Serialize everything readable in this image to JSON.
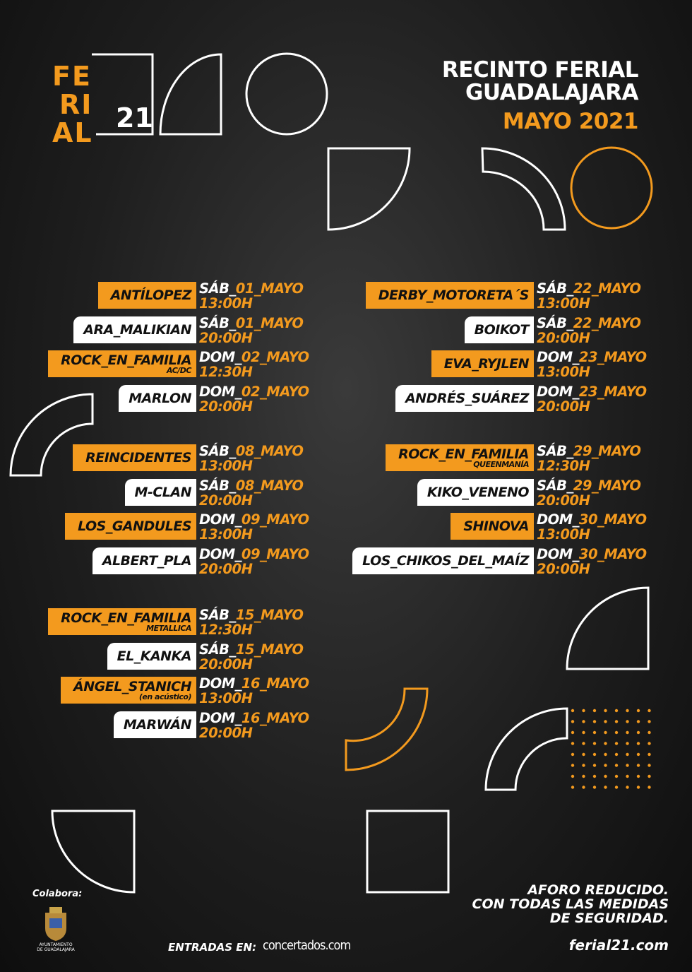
{
  "header": {
    "logo": [
      "FE",
      "RI",
      "AL"
    ],
    "logo_year": "21",
    "venue": [
      "RECINTO FERIAL",
      "GUADALAJARA"
    ],
    "month": "MAYO 2021"
  },
  "schedule": {
    "left": [
      [
        {
          "artist": "ANTÍLOPEZ",
          "day": "SÁB_",
          "date": "01_MAYO",
          "time": "13:00H",
          "highlight": true
        },
        {
          "artist": "ARA_MALIKIAN",
          "day": "SÁB_",
          "date": "01_MAYO",
          "time": "20:00H",
          "highlight": false
        },
        {
          "artist": "ROCK_EN_FAMILIA",
          "note": "AC/DC",
          "day": "DOM_",
          "date": "02_MAYO",
          "time": "12:30H",
          "highlight": true
        },
        {
          "artist": "MARLON",
          "day": "DOM_",
          "date": "02_MAYO",
          "time": "20:00H",
          "highlight": false
        }
      ],
      [
        {
          "artist": "REINCIDENTES",
          "day": "SÁB_",
          "date": "08_MAYO",
          "time": "13:00H",
          "highlight": true
        },
        {
          "artist": "M-CLAN",
          "day": "SÁB_",
          "date": "08_MAYO",
          "time": "20:00H",
          "highlight": false
        },
        {
          "artist": "LOS_GANDULES",
          "day": "DOM_",
          "date": "09_MAYO",
          "time": "13:00H",
          "highlight": true
        },
        {
          "artist": "ALBERT_PLA",
          "day": "DOM_",
          "date": "09_MAYO",
          "time": "20:00H",
          "highlight": false
        }
      ],
      [
        {
          "artist": "ROCK_EN_FAMILIA",
          "note": "METALLICA",
          "day": "SÁB_",
          "date": "15_MAYO",
          "time": "12:30H",
          "highlight": true
        },
        {
          "artist": "EL_KANKA",
          "day": "SÁB_",
          "date": "15_MAYO",
          "time": "20:00H",
          "highlight": false
        },
        {
          "artist": "ÁNGEL_STANICH",
          "note": "(en acústico)",
          "day": "DOM_",
          "date": "16_MAYO",
          "time": "13:00H",
          "highlight": true
        },
        {
          "artist": "MARWÁN",
          "day": "DOM_",
          "date": "16_MAYO",
          "time": "20:00H",
          "highlight": false
        }
      ]
    ],
    "right": [
      [
        {
          "artist": "DERBY_MOTORETA´S",
          "day": "SÁB_",
          "date": "22_MAYO",
          "time": "13:00H",
          "highlight": true
        },
        {
          "artist": "BOIKOT",
          "day": "SÁB_",
          "date": "22_MAYO",
          "time": "20:00H",
          "highlight": false
        },
        {
          "artist": "EVA_RYJLEN",
          "day": "DOM_",
          "date": "23_MAYO",
          "time": "13:00H",
          "highlight": true
        },
        {
          "artist": "ANDRÉS_SUÁREZ",
          "day": "DOM_",
          "date": "23_MAYO",
          "time": "20:00H",
          "highlight": false
        }
      ],
      [
        {
          "artist": "ROCK_EN_FAMILIA",
          "note": "QUEENMANÍA",
          "day": "SÁB_",
          "date": "29_MAYO",
          "time": "12:30H",
          "highlight": true
        },
        {
          "artist": "KIKO_VENENO",
          "day": "SÁB_",
          "date": "29_MAYO",
          "time": "20:00H",
          "highlight": false
        },
        {
          "artist": "SHINOVA",
          "day": "DOM_",
          "date": "30_MAYO",
          "time": "13:00H",
          "highlight": true
        },
        {
          "artist": "LOS_CHIKOS_DEL_MAÍZ",
          "day": "DOM_",
          "date": "30_MAYO",
          "time": "20:00H",
          "highlight": false
        }
      ]
    ]
  },
  "footer": {
    "sponsor_label": "Colabora:",
    "sponsor": [
      "AYUNTAMIENTO",
      "DE GUADALAJARA"
    ],
    "tickets_label": "ENTRADAS EN:",
    "tickets_site": "concertados.com",
    "notice": [
      "AFORO REDUCIDO.",
      "CON TODAS LAS MEDIDAS",
      "DE SEGURIDAD."
    ],
    "website": "ferial21.com"
  }
}
